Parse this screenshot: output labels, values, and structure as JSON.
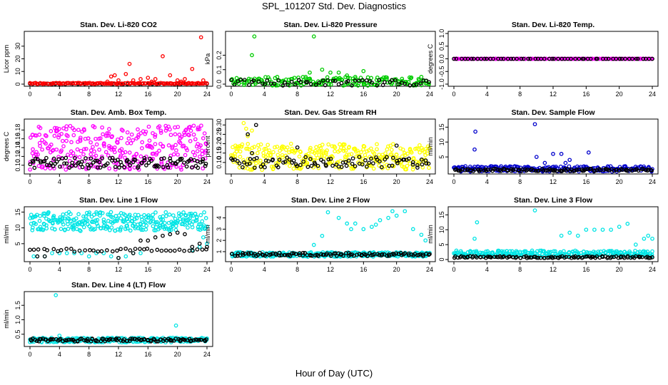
{
  "figure": {
    "title": "SPL_101207  Std. Dev. Diagnostics",
    "xlabel": "Hour of Day (UTC)"
  },
  "colors": {
    "red": "#ff0000",
    "green": "#00cc00",
    "magenta": "#ff00ff",
    "yellow": "#ffff00",
    "blue": "#0000cc",
    "cyan": "#00e5e5",
    "black": "#000000"
  },
  "chart_data": [
    {
      "id": "co2",
      "type": "scatter",
      "title": "Stan. Dev. Li-820 CO2",
      "ylabel": "Licor ppm",
      "xlim": [
        0,
        24
      ],
      "ylim": [
        0,
        40
      ],
      "xticks": [
        0,
        4,
        8,
        12,
        16,
        20,
        24
      ],
      "yticks": [
        0,
        10,
        20,
        30
      ],
      "series": [
        {
          "name": "black",
          "color": "black",
          "pattern": {
            "base": 0.3,
            "noise": 0.2,
            "n": 50
          }
        },
        {
          "name": "red",
          "color": "red",
          "pattern": {
            "base": 0.6,
            "noise": 0.4,
            "n": 140
          },
          "points": [
            [
              11,
              6
            ],
            [
              11.5,
              7
            ],
            [
              13,
              8
            ],
            [
              13.5,
              16
            ],
            [
              14,
              3
            ],
            [
              15,
              4
            ],
            [
              16,
              5
            ],
            [
              17,
              4
            ],
            [
              18,
              22
            ],
            [
              19,
              7
            ],
            [
              20,
              3
            ],
            [
              21,
              4
            ],
            [
              22,
              12
            ],
            [
              23.2,
              37
            ],
            [
              23.5,
              3
            ],
            [
              12,
              3
            ],
            [
              10.5,
              2
            ],
            [
              16.5,
              2
            ],
            [
              20.5,
              2
            ]
          ]
        }
      ]
    },
    {
      "id": "pressure",
      "type": "scatter",
      "title": "Stan. Dev. Li-820 Pressure",
      "ylabel": "kPa",
      "xlim": [
        0,
        24
      ],
      "ylim": [
        0,
        0.35
      ],
      "xticks": [
        0,
        4,
        8,
        12,
        16,
        20,
        24
      ],
      "yticks": [
        0.0,
        0.1,
        0.2
      ],
      "series": [
        {
          "name": "green",
          "color": "green",
          "pattern": {
            "base": 0.02,
            "noise": 0.03,
            "n": 180
          },
          "points": [
            [
              2.5,
              0.2
            ],
            [
              2.8,
              0.33
            ],
            [
              10,
              0.33
            ],
            [
              9.5,
              0.08
            ],
            [
              11,
              0.1
            ],
            [
              12,
              0.08
            ],
            [
              13,
              0.08
            ],
            [
              14,
              0.06
            ],
            [
              16,
              0.09
            ],
            [
              9,
              0.05
            ],
            [
              15,
              0.05
            ],
            [
              23,
              0.05
            ]
          ]
        },
        {
          "name": "black",
          "color": "black",
          "pattern": {
            "base": 0.01,
            "noise": 0.02,
            "n": 60
          }
        }
      ]
    },
    {
      "id": "licor_temp",
      "type": "scatter",
      "title": "Stan. Dev. Li-820 Temp.",
      "ylabel": "degrees C",
      "xlim": [
        0,
        24
      ],
      "ylim": [
        -1,
        1
      ],
      "xticks": [
        0,
        4,
        8,
        12,
        16,
        20,
        24
      ],
      "yticks": [
        -1.0,
        -0.5,
        0.0,
        0.5,
        1.0
      ],
      "series": [
        {
          "name": "magenta",
          "color": "magenta",
          "pattern": {
            "base": 0,
            "noise": 0,
            "n": 220
          }
        },
        {
          "name": "black",
          "color": "black",
          "pattern": {
            "base": 0,
            "noise": 0,
            "n": 60
          }
        }
      ]
    },
    {
      "id": "box_temp",
      "type": "scatter",
      "title": "Stan. Dev. Amb. Box Temp.",
      "ylabel": "degrees C",
      "xlim": [
        0,
        24
      ],
      "ylim": [
        0.085,
        0.2
      ],
      "xticks": [
        0,
        4,
        8,
        12,
        16,
        20,
        24
      ],
      "yticks": [
        0.1,
        0.12,
        0.14,
        0.16,
        0.18
      ],
      "series": [
        {
          "name": "magenta",
          "color": "magenta",
          "pattern": {
            "base": 0.14,
            "noise": 0.05,
            "n": 320
          }
        },
        {
          "name": "black",
          "color": "black",
          "pattern": {
            "base": 0.105,
            "noise": 0.012,
            "n": 110
          }
        }
      ]
    },
    {
      "id": "rh",
      "type": "scatter",
      "title": "Stan. Dev. Gas Stream RH",
      "ylabel": "percent",
      "xlim": [
        0,
        24
      ],
      "ylim": [
        0.05,
        0.32
      ],
      "xticks": [
        0,
        4,
        8,
        12,
        16,
        20,
        24
      ],
      "yticks": [
        0.1,
        0.15,
        0.2,
        0.25,
        0.3
      ],
      "series": [
        {
          "name": "yellow",
          "color": "yellow",
          "pattern": {
            "base": 0.13,
            "noise": 0.07,
            "n": 320
          },
          "points": [
            [
              1.5,
              0.31
            ],
            [
              1.8,
              0.28
            ],
            [
              2,
              0.24
            ],
            [
              2.5,
              0.27
            ]
          ]
        },
        {
          "name": "black",
          "color": "black",
          "pattern": {
            "base": 0.1,
            "noise": 0.03,
            "n": 90
          },
          "points": [
            [
              3,
              0.3
            ],
            [
              2,
              0.25
            ],
            [
              2.5,
              0.15
            ],
            [
              8,
              0.18
            ],
            [
              20,
              0.19
            ]
          ]
        }
      ]
    },
    {
      "id": "sample_flow",
      "type": "scatter",
      "title": "Stan. Dev. Sample Flow",
      "ylabel": "ml/min",
      "xlim": [
        0,
        24
      ],
      "ylim": [
        0,
        17
      ],
      "xticks": [
        0,
        4,
        8,
        12,
        16,
        20,
        24
      ],
      "yticks": [
        5,
        10,
        15
      ],
      "series": [
        {
          "name": "blue",
          "color": "blue",
          "pattern": {
            "base": 1,
            "noise": 0.9,
            "n": 220
          },
          "points": [
            [
              2.6,
              13.5
            ],
            [
              2.5,
              7.5
            ],
            [
              9.8,
              16
            ],
            [
              10,
              5
            ],
            [
              12,
              6
            ],
            [
              13,
              6
            ],
            [
              13.5,
              3
            ],
            [
              14,
              4
            ],
            [
              16.3,
              6.5
            ],
            [
              11,
              3
            ]
          ]
        },
        {
          "name": "black",
          "color": "black",
          "pattern": {
            "base": 0.6,
            "noise": 0.4,
            "n": 110
          }
        }
      ]
    },
    {
      "id": "line1",
      "type": "scatter",
      "title": "Stan. Dev. Line 1 Flow",
      "ylabel": "ml/min",
      "xlim": [
        0,
        24
      ],
      "ylim": [
        0,
        16
      ],
      "xticks": [
        0,
        4,
        8,
        12,
        16,
        20,
        24
      ],
      "yticks": [
        5,
        10,
        15
      ],
      "series": [
        {
          "name": "cyan",
          "color": "cyan",
          "pattern": {
            "base": 12,
            "noise": 3,
            "n": 300
          },
          "points": [
            [
              0.5,
              1
            ],
            [
              1,
              1
            ],
            [
              2,
              1
            ],
            [
              3,
              2
            ],
            [
              4,
              2
            ],
            [
              5,
              2
            ],
            [
              6,
              2
            ],
            [
              7,
              2
            ],
            [
              8,
              1
            ],
            [
              9,
              2
            ],
            [
              10,
              2
            ],
            [
              11,
              1
            ],
            [
              12,
              0.5
            ],
            [
              13,
              1
            ],
            [
              14,
              2
            ],
            [
              15,
              2
            ],
            [
              22,
              3
            ],
            [
              23,
              4
            ],
            [
              24,
              5
            ],
            [
              23.5,
              7
            ]
          ]
        },
        {
          "name": "black",
          "color": "black",
          "pattern": {
            "base": 3,
            "noise": 0.5,
            "n": 40
          },
          "points": [
            [
              1,
              1
            ],
            [
              2,
              1
            ],
            [
              12,
              0.5
            ],
            [
              14,
              2
            ],
            [
              15,
              6
            ],
            [
              16,
              6
            ],
            [
              17,
              7
            ],
            [
              18,
              7.5
            ],
            [
              19,
              8
            ],
            [
              20,
              8.5
            ],
            [
              21,
              8
            ],
            [
              22,
              4
            ],
            [
              23,
              5
            ],
            [
              24,
              4
            ]
          ]
        }
      ]
    },
    {
      "id": "line2",
      "type": "scatter",
      "title": "Stan. Dev. Line 2 Flow",
      "ylabel": "ml/min",
      "xlim": [
        0,
        24
      ],
      "ylim": [
        0.3,
        4.8
      ],
      "xticks": [
        0,
        4,
        8,
        12,
        16,
        20,
        24
      ],
      "yticks": [
        1,
        2,
        3,
        4
      ],
      "series": [
        {
          "name": "cyan",
          "color": "cyan",
          "pattern": {
            "base": 0.75,
            "noise": 0.2,
            "n": 260
          },
          "points": [
            [
              10,
              1.6
            ],
            [
              11,
              2.4
            ],
            [
              11.7,
              4.5
            ],
            [
              13,
              4
            ],
            [
              14,
              3.5
            ],
            [
              14.5,
              3
            ],
            [
              15,
              3.5
            ],
            [
              16,
              3
            ],
            [
              17,
              3.2
            ],
            [
              17.5,
              3.4
            ],
            [
              18,
              3.8
            ],
            [
              19,
              4
            ],
            [
              19.5,
              4.6
            ],
            [
              20,
              4.2
            ],
            [
              21,
              4.6
            ],
            [
              22,
              3
            ],
            [
              23,
              2.5
            ],
            [
              23.5,
              2
            ]
          ]
        },
        {
          "name": "black",
          "color": "black",
          "pattern": {
            "base": 0.75,
            "noise": 0.15,
            "n": 110
          }
        }
      ]
    },
    {
      "id": "line3",
      "type": "scatter",
      "title": "Stan. Dev. Line 3 Flow",
      "ylabel": "ml/min",
      "xlim": [
        0,
        24
      ],
      "ylim": [
        0,
        17
      ],
      "xticks": [
        0,
        4,
        8,
        12,
        16,
        20,
        24
      ],
      "yticks": [
        0,
        5,
        10,
        15
      ],
      "series": [
        {
          "name": "cyan",
          "color": "cyan",
          "pattern": {
            "base": 2,
            "noise": 1,
            "n": 260
          },
          "points": [
            [
              2.5,
              7
            ],
            [
              2.8,
              12.5
            ],
            [
              9.8,
              16.5
            ],
            [
              13,
              8
            ],
            [
              14,
              9
            ],
            [
              15,
              8
            ],
            [
              16,
              10
            ],
            [
              17,
              10
            ],
            [
              18,
              10
            ],
            [
              19,
              10
            ],
            [
              20,
              11
            ],
            [
              21,
              12
            ],
            [
              22,
              5
            ],
            [
              23,
              7
            ],
            [
              23.5,
              8
            ],
            [
              24,
              7
            ]
          ]
        },
        {
          "name": "black",
          "color": "black",
          "pattern": {
            "base": 0.8,
            "noise": 0.3,
            "n": 110
          }
        }
      ]
    },
    {
      "id": "line4",
      "type": "scatter",
      "title": "Stan. Dev. Line 4 (LT) Flow",
      "ylabel": "ml/min",
      "xlim": [
        0,
        24
      ],
      "ylim": [
        0.15,
        1.9
      ],
      "xticks": [
        0,
        4,
        8,
        12,
        16,
        20,
        24
      ],
      "yticks": [
        0.5,
        1.0,
        1.5
      ],
      "series": [
        {
          "name": "cyan",
          "color": "cyan",
          "pattern": {
            "base": 0.3,
            "noise": 0.08,
            "n": 260
          },
          "points": [
            [
              3.5,
              1.85
            ],
            [
              4,
              0.45
            ],
            [
              19.8,
              0.8
            ],
            [
              20,
              0.3
            ]
          ]
        },
        {
          "name": "black",
          "color": "black",
          "pattern": {
            "base": 0.3,
            "noise": 0.05,
            "n": 110
          }
        }
      ]
    }
  ]
}
